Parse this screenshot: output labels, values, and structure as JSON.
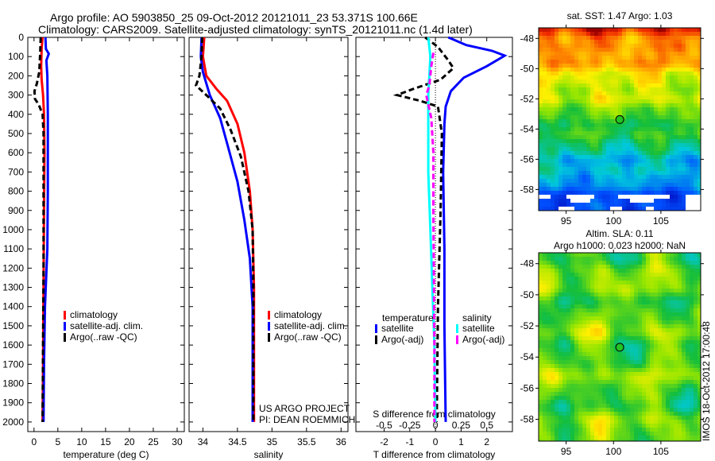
{
  "title": {
    "line1": "Argo profile: AO 5903850_25 09-Oct-2012 20121011_23 53.371S 100.66E",
    "line2": "Climatology: CARS2009. Satellite-adjusted climatology: synTS_20121011.nc (1.4d later)"
  },
  "colors": {
    "red": "#ff0000",
    "blue": "#0000ff",
    "black": "#000000",
    "cyan": "#00ffff",
    "magenta": "#ff00ff"
  },
  "chart_data": [
    {
      "type": "line",
      "id": "temperature",
      "xlabel": "temperature (deg C)",
      "xlim": [
        -1.3,
        31.5
      ],
      "xticks": [
        0,
        5,
        10,
        15,
        20,
        25,
        30
      ],
      "ylim": [
        0,
        2050
      ],
      "yticks": [
        0,
        100,
        200,
        300,
        400,
        500,
        600,
        700,
        800,
        900,
        1000,
        1100,
        1200,
        1300,
        1400,
        1500,
        1600,
        1700,
        1800,
        1900,
        2000
      ],
      "yreversed": true,
      "series": [
        {
          "name": "climatology",
          "color": "#ff0000",
          "dash": false,
          "points": [
            [
              1.8,
              0
            ],
            [
              1.6,
              60
            ],
            [
              1.5,
              150
            ],
            [
              1.6,
              220
            ],
            [
              1.9,
              300
            ],
            [
              2.1,
              400
            ],
            [
              2.2,
              600
            ],
            [
              2.1,
              900
            ],
            [
              2.0,
              1300
            ],
            [
              1.9,
              1700
            ],
            [
              1.8,
              2000
            ]
          ]
        },
        {
          "name": "satellite-adj. clim.",
          "color": "#0000ff",
          "dash": false,
          "points": [
            [
              2.4,
              0
            ],
            [
              2.5,
              60
            ],
            [
              3.1,
              85
            ],
            [
              2.6,
              120
            ],
            [
              2.8,
              200
            ],
            [
              2.9,
              400
            ],
            [
              2.9,
              800
            ],
            [
              2.8,
              1100
            ],
            [
              2.3,
              1400
            ],
            [
              2.1,
              1700
            ],
            [
              2.0,
              2000
            ]
          ]
        },
        {
          "name": "Argo(..raw -QC)",
          "color": "#000000",
          "dash": true,
          "points": [
            [
              1.4,
              0
            ],
            [
              1.3,
              80
            ],
            [
              1.1,
              180
            ],
            [
              0.6,
              240
            ],
            [
              0.1,
              280
            ],
            [
              0.2,
              320
            ],
            [
              1.0,
              350
            ],
            [
              1.8,
              400
            ],
            [
              2.0,
              500
            ],
            [
              2.0,
              800
            ],
            [
              2.0,
              1200
            ],
            [
              1.9,
              1600
            ],
            [
              1.8,
              2000
            ]
          ]
        }
      ],
      "legend": [
        "climatology",
        "satellite-adj. clim.",
        "Argo(..raw -QC)"
      ]
    },
    {
      "type": "line",
      "id": "salinity",
      "xlabel": "salinity",
      "xlim": [
        33.8,
        36.1
      ],
      "xticks": [
        34,
        34.5,
        35,
        35.5,
        36
      ],
      "ylim": [
        0,
        2050
      ],
      "yreversed": true,
      "series": [
        {
          "name": "climatology",
          "color": "#ff0000",
          "dash": false,
          "points": [
            [
              34.02,
              0
            ],
            [
              34.0,
              100
            ],
            [
              34.05,
              200
            ],
            [
              34.2,
              270
            ],
            [
              34.35,
              330
            ],
            [
              34.5,
              450
            ],
            [
              34.6,
              600
            ],
            [
              34.68,
              800
            ],
            [
              34.72,
              1000
            ],
            [
              34.74,
              1300
            ],
            [
              34.74,
              1600
            ],
            [
              34.74,
              2000
            ]
          ]
        },
        {
          "name": "satellite-adj. clim.",
          "color": "#0000ff",
          "dash": false,
          "points": [
            [
              33.98,
              0
            ],
            [
              33.97,
              100
            ],
            [
              34.0,
              180
            ],
            [
              34.1,
              300
            ],
            [
              34.25,
              420
            ],
            [
              34.35,
              550
            ],
            [
              34.5,
              750
            ],
            [
              34.6,
              950
            ],
            [
              34.68,
              1150
            ],
            [
              34.72,
              1400
            ],
            [
              34.72,
              1700
            ],
            [
              34.72,
              2000
            ]
          ]
        },
        {
          "name": "Argo(..raw -QC)",
          "color": "#000000",
          "dash": true,
          "points": [
            [
              33.99,
              0
            ],
            [
              33.98,
              100
            ],
            [
              33.95,
              200
            ],
            [
              33.9,
              250
            ],
            [
              34.05,
              300
            ],
            [
              34.25,
              370
            ],
            [
              34.4,
              480
            ],
            [
              34.55,
              620
            ],
            [
              34.66,
              800
            ],
            [
              34.72,
              1000
            ],
            [
              34.73,
              1300
            ],
            [
              34.73,
              2000
            ]
          ]
        }
      ],
      "legend": [
        "climatology",
        "satellite-adj. clim.",
        "Argo(..raw -QC)"
      ],
      "annotations": [
        "US ARGO PROJECT",
        "PI: DEAN ROEMMICH"
      ]
    },
    {
      "type": "line",
      "id": "difference",
      "xlabel": "T difference from climatology",
      "xlim": [
        -3.1,
        3.0
      ],
      "xticks": [
        -2,
        -1,
        0,
        1,
        2
      ],
      "x2label": "S difference from climatology",
      "x2ticks": [
        -0.5,
        -0.25,
        0,
        0.25,
        0.5
      ],
      "x2tick_labels": [
        "-0.5",
        "-0.25",
        "0",
        "0.25",
        "0.5"
      ],
      "x2scale": 4,
      "ylim": [
        0,
        2050
      ],
      "yreversed": true,
      "series": [
        {
          "name": "temperature satellite",
          "color": "#0000ff",
          "dash": false,
          "scale": "T",
          "points": [
            [
              0.5,
              0
            ],
            [
              1.2,
              40
            ],
            [
              2.2,
              70
            ],
            [
              2.7,
              95
            ],
            [
              2.0,
              150
            ],
            [
              1.1,
              210
            ],
            [
              0.6,
              280
            ],
            [
              0.4,
              360
            ],
            [
              0.35,
              450
            ],
            [
              0.3,
              700
            ],
            [
              0.35,
              1100
            ],
            [
              0.35,
              1500
            ],
            [
              0.4,
              2000
            ]
          ]
        },
        {
          "name": "temperature Argo(-adj)",
          "color": "#000000",
          "dash": true,
          "scale": "T",
          "points": [
            [
              -0.4,
              0
            ],
            [
              0.1,
              50
            ],
            [
              0.5,
              120
            ],
            [
              0.7,
              160
            ],
            [
              0.2,
              220
            ],
            [
              -0.9,
              270
            ],
            [
              -1.5,
              300
            ],
            [
              -0.6,
              330
            ],
            [
              0.1,
              360
            ],
            [
              0.25,
              500
            ],
            [
              0.2,
              900
            ],
            [
              0.1,
              1400
            ],
            [
              0.05,
              2000
            ]
          ]
        },
        {
          "name": "salinity satellite",
          "color": "#00ffff",
          "dash": false,
          "scale": "S",
          "points": [
            [
              -0.07,
              0
            ],
            [
              -0.05,
              100
            ],
            [
              -0.06,
              200
            ],
            [
              -0.07,
              300
            ],
            [
              -0.07,
              450
            ],
            [
              -0.07,
              700
            ],
            [
              -0.05,
              1000
            ],
            [
              -0.03,
              1300
            ],
            [
              -0.01,
              1600
            ],
            [
              0.0,
              2000
            ]
          ]
        },
        {
          "name": "salinity Argo(-adj)",
          "color": "#ff00ff",
          "dash": true,
          "scale": "S",
          "points": [
            [
              -0.02,
              80
            ],
            [
              -0.04,
              150
            ],
            [
              -0.06,
              250
            ],
            [
              -0.09,
              300
            ],
            [
              -0.04,
              420
            ],
            [
              -0.02,
              600
            ],
            [
              -0.02,
              900
            ],
            [
              -0.015,
              1300
            ],
            [
              -0.01,
              1600
            ],
            [
              -0.01,
              2000
            ]
          ]
        }
      ],
      "legend": {
        "temperature_title": "temperature",
        "temperature_items": [
          "satellite",
          "Argo(-adj)"
        ],
        "salinity_title": "salinity",
        "salinity_items": [
          "satellite",
          "Argo(-adj)"
        ]
      }
    },
    {
      "type": "heatmap",
      "id": "sst-map",
      "title": "sat. SST: 1.47 Argo: 1.03",
      "xticks": [
        95,
        100,
        105
      ],
      "yticks": [
        -48,
        -50,
        -52,
        -54,
        -56,
        -58
      ],
      "xlim": [
        92.1,
        109.2
      ],
      "ylim": [
        -59.4,
        -47.3
      ],
      "marker": {
        "lon": 100.66,
        "lat": -53.371
      }
    },
    {
      "type": "heatmap",
      "id": "sla-map",
      "title": "Altim. SLA: 0.11",
      "subtitle": "Argo h1000: 0.023 h2000: NaN",
      "xticks": [
        95,
        100,
        105
      ],
      "yticks": [
        -48,
        -50,
        -52,
        -54,
        -56,
        -58
      ],
      "xlim": [
        92.1,
        109.2
      ],
      "ylim": [
        -59.4,
        -47.3
      ],
      "marker": {
        "lon": 100.66,
        "lat": -53.371
      }
    }
  ],
  "footer": {
    "timestamp": "IMOS 18-Oct-2012 17:00:48"
  }
}
